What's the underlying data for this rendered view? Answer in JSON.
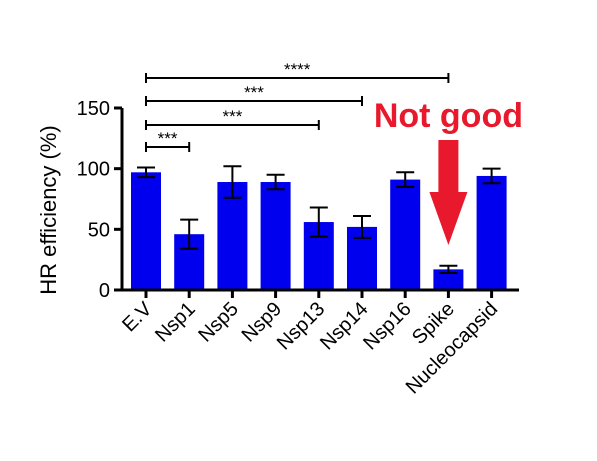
{
  "chart_data": {
    "type": "bar",
    "ylabel": "HR efficiency (%)",
    "ylim": [
      0,
      150
    ],
    "yticks": [
      0,
      50,
      100,
      150
    ],
    "grid": false,
    "bar_color": "#0000ee",
    "categories": [
      "E.V",
      "Nsp1",
      "Nsp5",
      "Nsp9",
      "Nsp13",
      "Nsp14",
      "Nsp16",
      "Spike",
      "Nucleocapsid"
    ],
    "values": [
      97,
      46,
      89,
      89,
      56,
      52,
      91,
      17,
      94
    ],
    "error": [
      4,
      12,
      13,
      6,
      12,
      9,
      6,
      3,
      6
    ],
    "significance": [
      {
        "from": "E.V",
        "to": "Nsp1",
        "label": "***"
      },
      {
        "from": "E.V",
        "to": "Nsp13",
        "label": "***"
      },
      {
        "from": "E.V",
        "to": "Nsp14",
        "label": "***"
      },
      {
        "from": "E.V",
        "to": "Spike",
        "label": "****"
      }
    ]
  },
  "annotation": {
    "text": "Not good",
    "color": "#e8192c",
    "target": "Spike"
  }
}
